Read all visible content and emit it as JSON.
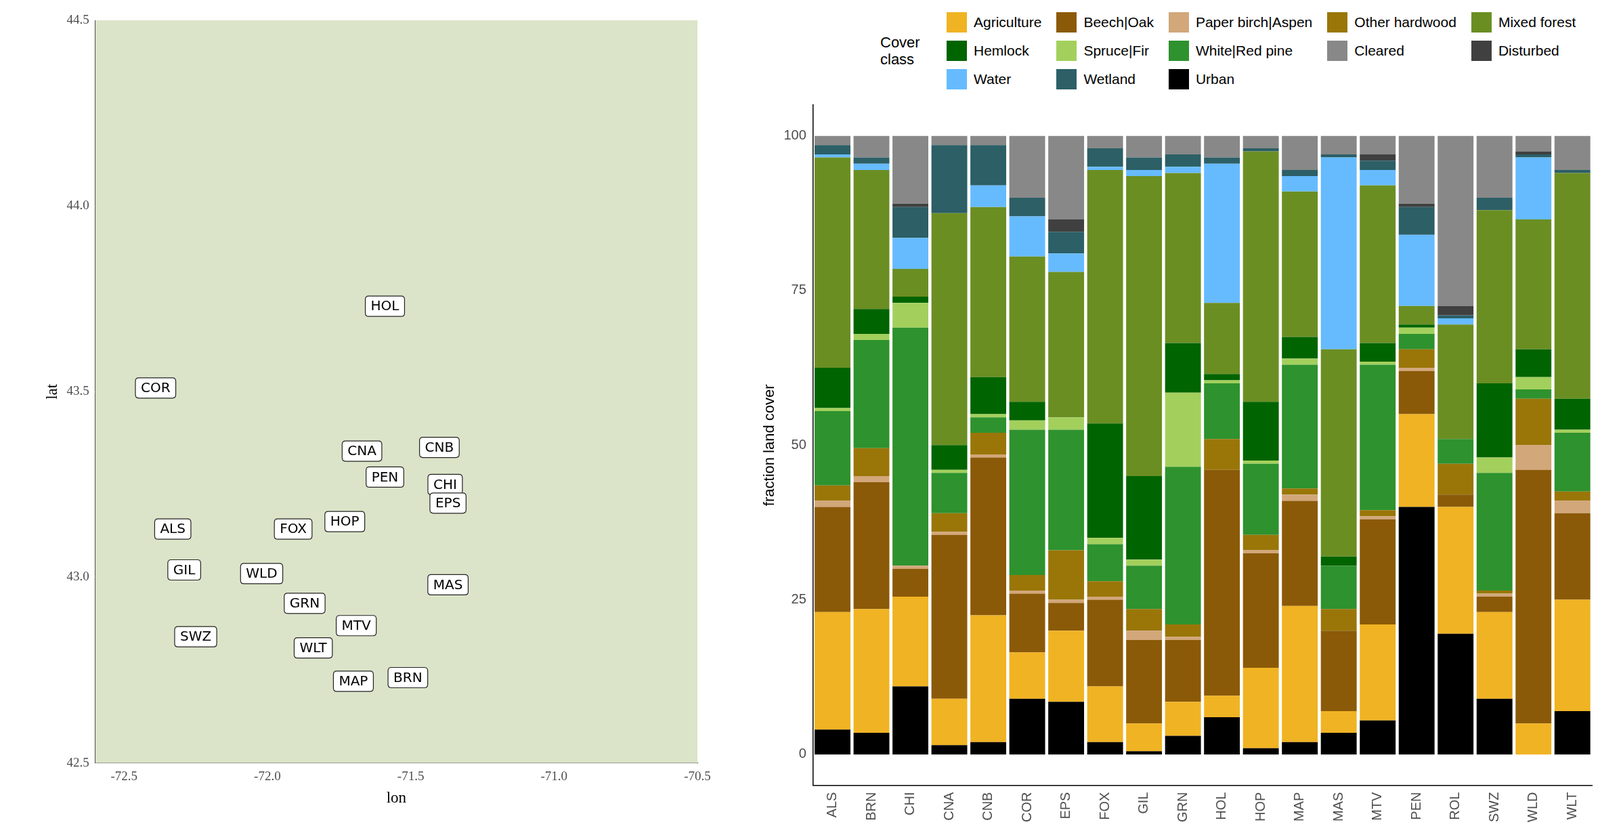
{
  "chart_data": [
    {
      "type": "scatter",
      "x_label": "lon",
      "y_label": "lat",
      "labels": [
        "HOL",
        "COR",
        "CNA",
        "CNB",
        "PEN",
        "CHI",
        "EPS",
        "ALS",
        "FOX",
        "HOP",
        "GIL",
        "WLD",
        "MAS",
        "GRN",
        "MTV",
        "SWZ",
        "WLT",
        "MAP",
        "BRN"
      ],
      "x": [
        -71.59,
        -72.39,
        -71.67,
        -71.4,
        -71.59,
        -71.38,
        -71.37,
        -72.33,
        -71.91,
        -71.73,
        -72.29,
        -72.02,
        -71.37,
        -71.87,
        -71.69,
        -72.25,
        -71.84,
        -71.7,
        -71.51
      ],
      "y": [
        43.73,
        43.51,
        43.34,
        43.35,
        43.27,
        43.25,
        43.2,
        43.13,
        43.13,
        43.15,
        43.02,
        43.01,
        42.98,
        42.93,
        42.87,
        42.84,
        42.81,
        42.72,
        42.73
      ],
      "xlim": [
        -72.6,
        -70.5
      ],
      "xticks": [
        -72.5,
        {
          "value": -72,
          "label": "-72.0"
        },
        -71.5,
        {
          "value": -71,
          "label": "-71.0"
        },
        -70.5
      ],
      "ylim": [
        42.5,
        44.5
      ],
      "yticks": [
        42.5,
        {
          "value": 43,
          "label": "43.0"
        },
        43.5,
        {
          "value": 44,
          "label": "44.0"
        },
        44.5
      ],
      "grid": false
    },
    {
      "type": "bar",
      "stacked": true,
      "grid": false,
      "legend": "top",
      "legend_title": "Cover class",
      "y_label": "fraction land cover",
      "categories": [
        "ALS",
        "BRN",
        "CHI",
        "CNA",
        "CNB",
        "COR",
        "EPS",
        "FOX",
        "GIL",
        "GRN",
        "HOL",
        "HOP",
        "MAP",
        "MAS",
        "MTV",
        "PEN",
        "ROL",
        "SWZ",
        "WLD",
        "WLT"
      ],
      "ylim": [
        -5,
        105
      ],
      "yticks": [
        0,
        25,
        50,
        75,
        100
      ],
      "series": [
        {
          "name": "Urban",
          "color": "#000000",
          "values": [
            4,
            3.5,
            11,
            1.5,
            2,
            9,
            8.5,
            2,
            0.5,
            3,
            6,
            1,
            2,
            3.5,
            5.5,
            40,
            19.5,
            9,
            0,
            7
          ]
        },
        {
          "name": "Agriculture",
          "color": "#f0b323",
          "values": [
            19,
            20,
            14.5,
            7.5,
            20.5,
            7.5,
            11.5,
            9,
            4.5,
            5.5,
            3.5,
            13,
            22,
            3.5,
            15.5,
            15,
            20.5,
            14,
            5,
            18
          ]
        },
        {
          "name": "Beech|Oak",
          "color": "#8b5a08",
          "values": [
            17,
            20.5,
            4.5,
            26.5,
            25.5,
            9.5,
            4.5,
            14,
            13.5,
            10,
            36.5,
            18.5,
            17,
            13,
            17,
            7,
            2,
            2.5,
            41,
            14
          ]
        },
        {
          "name": "Paper birch|Aspen",
          "color": "#d2a77a",
          "values": [
            1,
            1,
            0.5,
            0.5,
            0.5,
            0.5,
            0.5,
            0.5,
            1.5,
            0.5,
            0,
            0.5,
            1,
            0,
            0.5,
            0.5,
            0,
            0.5,
            4,
            2
          ]
        },
        {
          "name": "Other hardwood",
          "color": "#9a7608",
          "values": [
            2.5,
            4.5,
            0,
            3,
            3.5,
            2.5,
            8,
            2.5,
            3.5,
            2,
            5,
            2.5,
            1,
            3.5,
            1,
            3,
            5,
            0.5,
            7.5,
            1.5
          ]
        },
        {
          "name": "White|Red pine",
          "color": "#2e922e",
          "values": [
            12,
            17.5,
            38.5,
            6.5,
            2.5,
            23.5,
            19.5,
            6,
            7,
            25.5,
            9,
            11.5,
            20,
            7,
            23.5,
            2.5,
            4,
            19,
            1.5,
            9.5
          ]
        },
        {
          "name": "Spruce|Fir",
          "color": "#a3d05c",
          "values": [
            0.5,
            1,
            4,
            0.5,
            0.5,
            1.5,
            2,
            1,
            1,
            12,
            0.5,
            0.5,
            1,
            0,
            0.5,
            1,
            0,
            2.5,
            2,
            0.5
          ]
        },
        {
          "name": "Hemlock",
          "color": "#006400",
          "values": [
            6.5,
            4,
            1,
            4,
            6,
            3,
            0,
            18.5,
            13.5,
            8,
            1,
            9.5,
            3.5,
            1.5,
            3,
            0.5,
            0,
            12,
            4.5,
            5
          ]
        },
        {
          "name": "Mixed forest",
          "color": "#6b8e23",
          "values": [
            34,
            22.5,
            4.5,
            37.5,
            27.5,
            23.5,
            23.5,
            41,
            48.5,
            27.5,
            11.5,
            40.5,
            23.5,
            33.5,
            25.5,
            3,
            18.5,
            28,
            21,
            36.5
          ]
        },
        {
          "name": "Water",
          "color": "#66bbff",
          "values": [
            0.5,
            1,
            5,
            0,
            3.5,
            6.5,
            3,
            0.5,
            1,
            1,
            22.5,
            0,
            2.5,
            31,
            2.5,
            11.5,
            1,
            0,
            10,
            0
          ]
        },
        {
          "name": "Wetland",
          "color": "#2c5f66",
          "values": [
            1.5,
            1,
            5,
            11,
            6.5,
            3,
            3.5,
            3,
            2,
            2,
            1,
            0.5,
            1,
            0.5,
            1.5,
            4.5,
            0.5,
            2,
            0.5,
            0.5
          ]
        },
        {
          "name": "Disturbed",
          "color": "#404040",
          "values": [
            0,
            0,
            0.5,
            0,
            0,
            0,
            2,
            0,
            0,
            0,
            0,
            0,
            0,
            0,
            1,
            0.5,
            1.5,
            0,
            0.5,
            0
          ]
        },
        {
          "name": "Cleared",
          "color": "#888888",
          "values": [
            1.5,
            3.5,
            11,
            1.5,
            1.5,
            10,
            13.5,
            2,
            3.5,
            3,
            3.5,
            2,
            5.5,
            3,
            3,
            11,
            27.5,
            10,
            2.5,
            5.5
          ]
        }
      ]
    }
  ]
}
